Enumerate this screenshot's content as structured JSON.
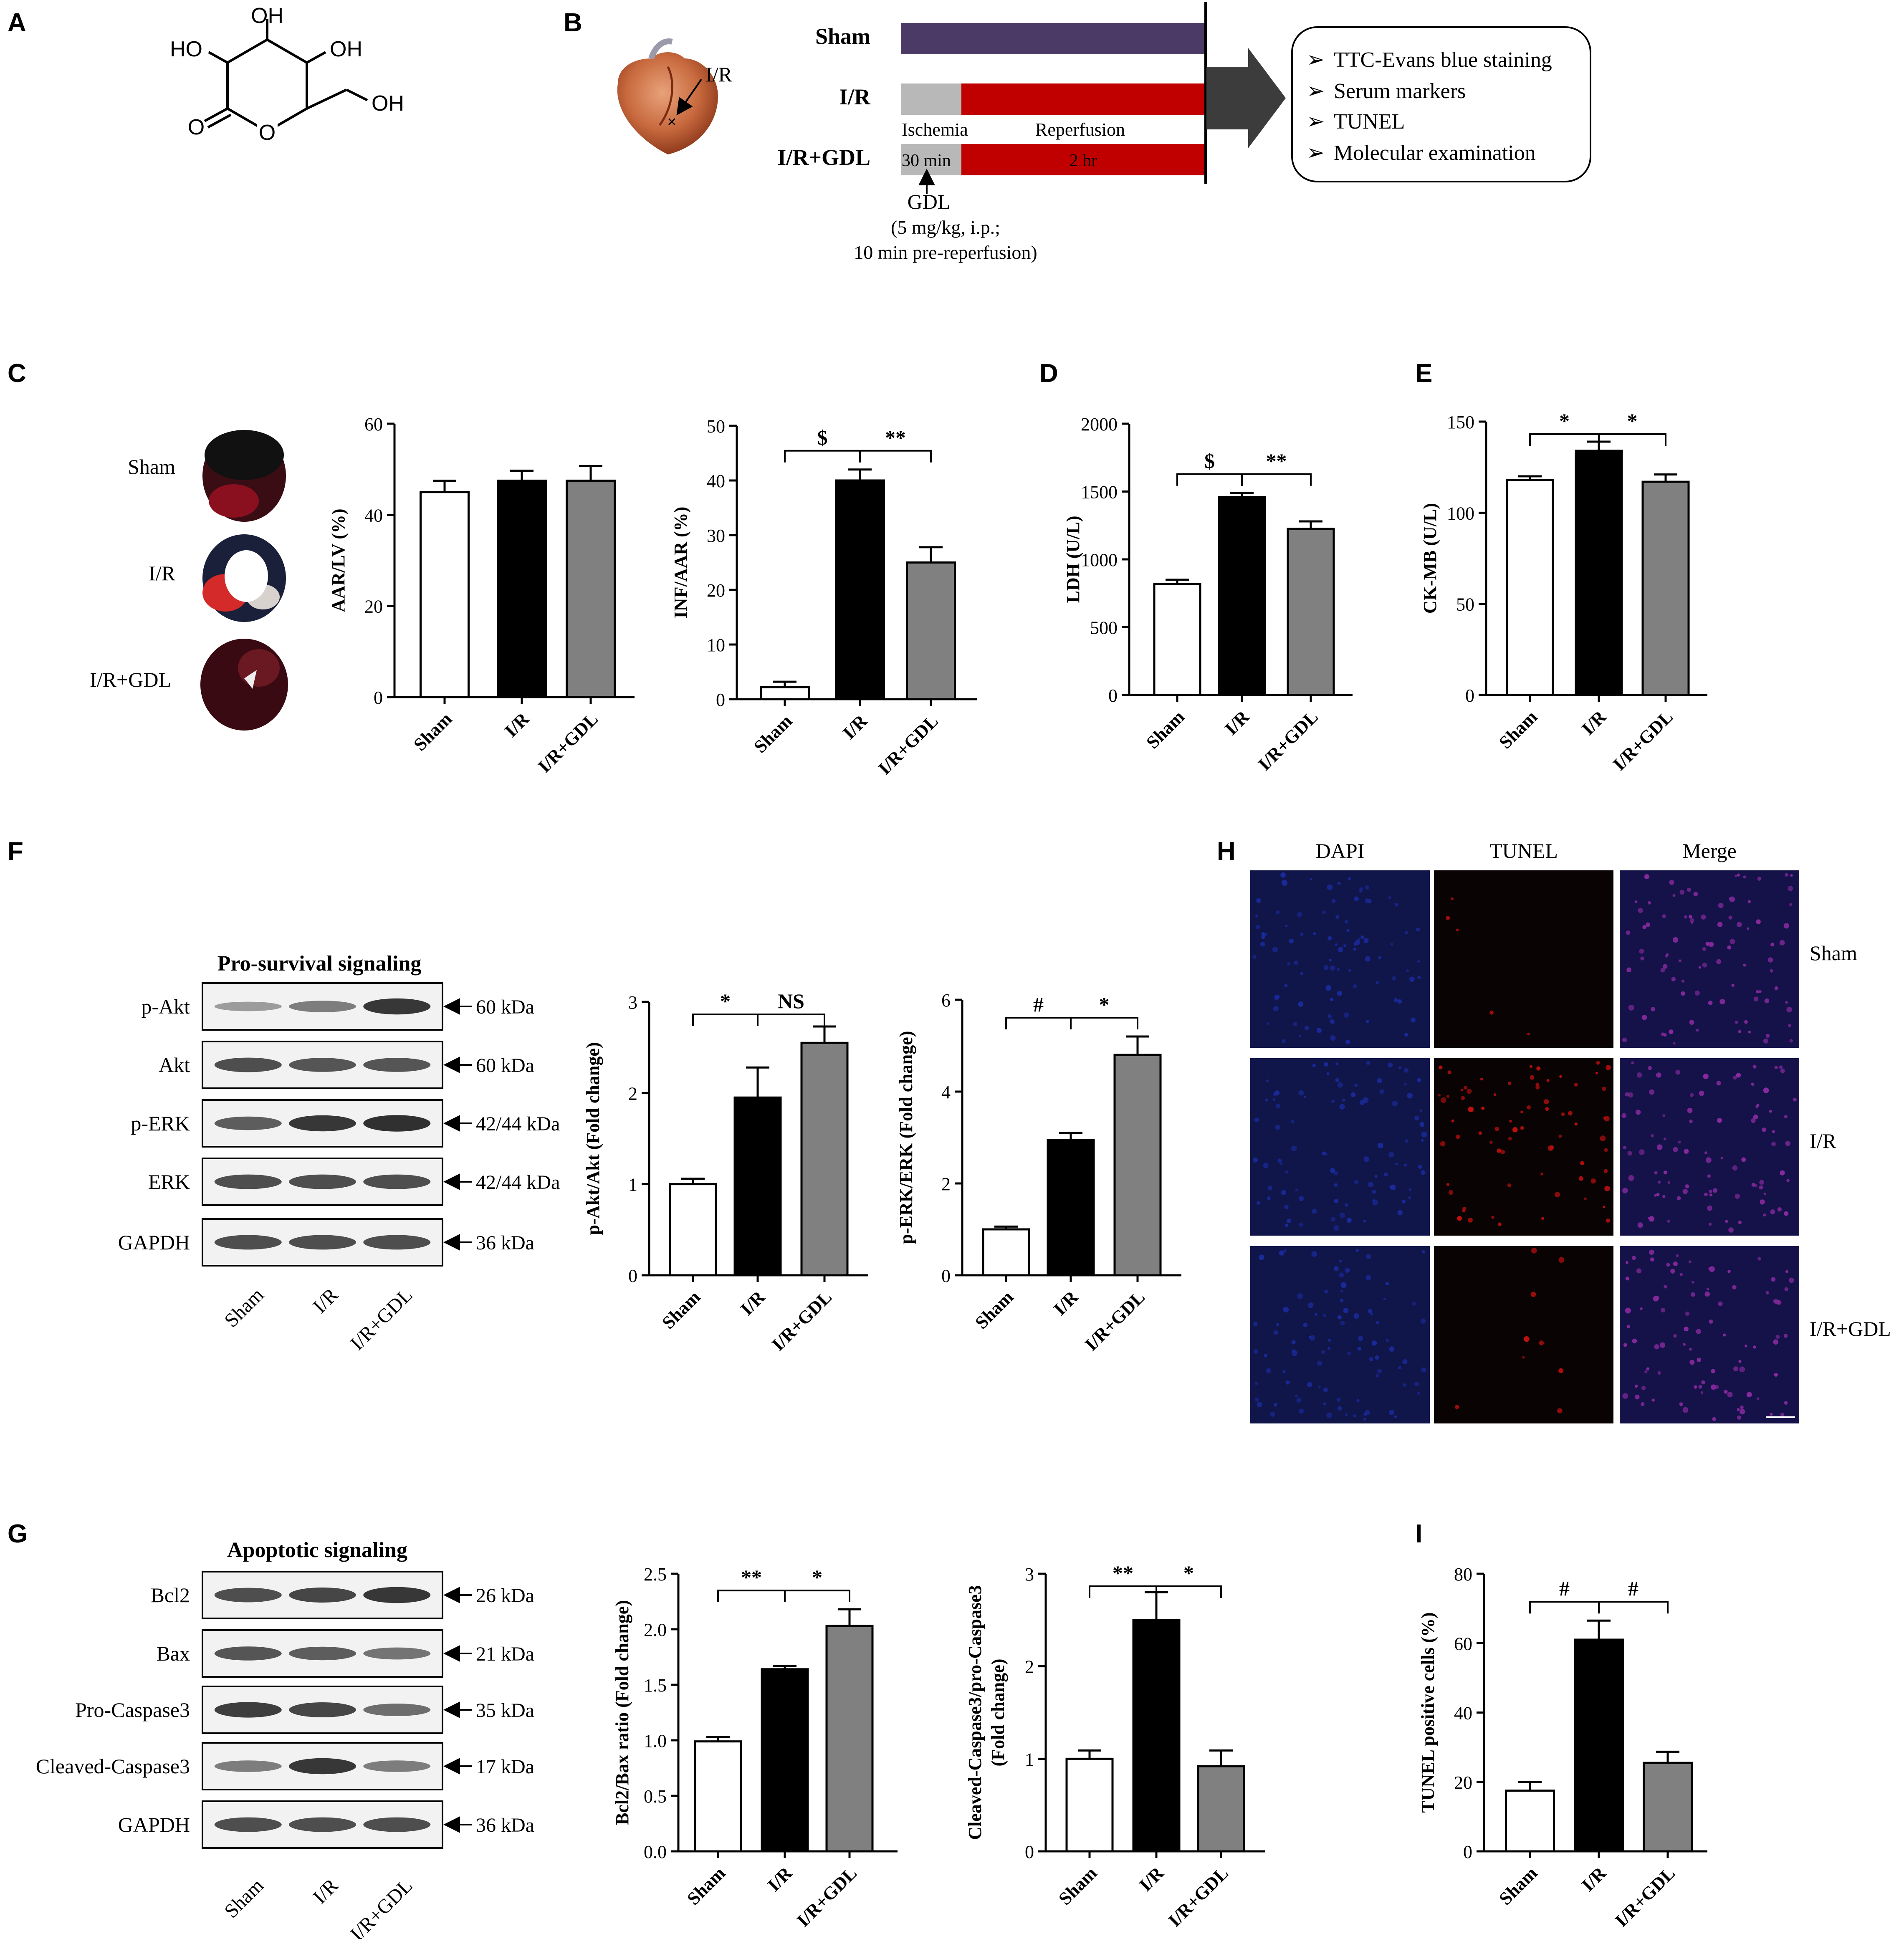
{
  "panels": {
    "A": "A",
    "B": "B",
    "C": "C",
    "D": "D",
    "E": "E",
    "F": "F",
    "G": "G",
    "H": "H",
    "I": "I"
  },
  "colors": {
    "sham_bar": "#ffffff",
    "ir_bar": "#000000",
    "gdl_bar": "#808080",
    "sham_timeline": "#4b3a66",
    "ischemia": "#b8b8b8",
    "reperfusion": "#c00000",
    "dapi": "#1a2a9a",
    "tunel": "#c01010",
    "merge": "#8a2aa0"
  },
  "structure": {
    "atoms": {
      "oh_top": "OH",
      "ho_left": "HO",
      "oh_right": "OH",
      "o_carbonyl": "O",
      "o_ring": "O",
      "oh_ch2": "OH"
    }
  },
  "protocol": {
    "heart_label": "I/R",
    "groups": [
      "Sham",
      "I/R",
      "I/R+GDL"
    ],
    "ischemia_label": "Ischemia",
    "reperfusion_label": "Reperfusion",
    "ischemia_time": "30  min",
    "reperfusion_time": "2 hr",
    "gdl_label": "GDL",
    "gdl_dose": "(5 mg/kg, i.p.;",
    "gdl_timing": "10 min pre-reperfusion)",
    "outcomes": [
      "TTC-Evans  blue  staining",
      "Serum  markers",
      "TUNEL",
      "Molecular  examination"
    ],
    "bullet": "➢"
  },
  "staining": {
    "labels": [
      "Sham",
      "I/R",
      "I/R+GDL"
    ]
  },
  "blot_f": {
    "title": "Pro-survival  signaling",
    "rows": [
      {
        "name": "p-Akt",
        "size": "60 kDa"
      },
      {
        "name": "Akt",
        "size": "60 kDa"
      },
      {
        "name": "p-ERK",
        "size": "42/44 kDa"
      },
      {
        "name": "ERK",
        "size": "42/44 kDa"
      },
      {
        "name": "GAPDH",
        "size": "36 kDa"
      }
    ],
    "lanes": [
      "Sham",
      "I/R",
      "I/R+GDL"
    ]
  },
  "blot_g": {
    "title": "Apoptotic  signaling",
    "rows": [
      {
        "name": "Bcl2",
        "size": "26 kDa"
      },
      {
        "name": "Bax",
        "size": "21 kDa"
      },
      {
        "name": "Pro-Caspase3",
        "size": "35 kDa"
      },
      {
        "name": "Cleaved-Caspase3",
        "size": "17 kDa"
      },
      {
        "name": "GAPDH",
        "size": "36 kDa"
      }
    ],
    "lanes": [
      "Sham",
      "I/R",
      "I/R+GDL"
    ]
  },
  "tunel_images": {
    "columns": [
      "DAPI",
      "TUNEL",
      "Merge"
    ],
    "rows": [
      "Sham",
      "I/R",
      "I/R+GDL"
    ]
  },
  "chart_data": [
    {
      "id": "aar",
      "type": "bar",
      "categories": [
        "Sham",
        "I/R",
        "I/R+GDL"
      ],
      "values": [
        45,
        47.5,
        47.5
      ],
      "errors": [
        2.5,
        2.2,
        3.2
      ],
      "ylabel": "AAR/LV (%)",
      "ylim": [
        0,
        60
      ],
      "yticks": [
        0,
        20,
        40,
        60
      ],
      "annotations": []
    },
    {
      "id": "inf",
      "type": "bar",
      "categories": [
        "Sham",
        "I/R",
        "I/R+GDL"
      ],
      "values": [
        2.2,
        40,
        25
      ],
      "errors": [
        1.0,
        2.0,
        2.8
      ],
      "ylabel": "INF/AAR (%)",
      "ylim": [
        0,
        50
      ],
      "yticks": [
        0,
        10,
        20,
        30,
        40,
        50
      ],
      "annotations": [
        {
          "left": "$",
          "right": "**"
        }
      ]
    },
    {
      "id": "ldh",
      "type": "bar",
      "categories": [
        "Sham",
        "I/R",
        "I/R+GDL"
      ],
      "values": [
        820,
        1460,
        1225
      ],
      "errors": [
        30,
        30,
        55
      ],
      "ylabel": "LDH (U/L)",
      "ylim": [
        0,
        2000
      ],
      "yticks": [
        0,
        500,
        1000,
        1500,
        2000
      ],
      "annotations": [
        {
          "left": "$",
          "right": "**"
        }
      ]
    },
    {
      "id": "ckmb",
      "type": "bar",
      "categories": [
        "Sham",
        "I/R",
        "I/R+GDL"
      ],
      "values": [
        118,
        134,
        117
      ],
      "errors": [
        2,
        5,
        4
      ],
      "ylabel": "CK-MB (U/L)",
      "ylim": [
        0,
        150
      ],
      "yticks": [
        0,
        50,
        100,
        150
      ],
      "annotations": [
        {
          "left": "*",
          "right": "*"
        }
      ]
    },
    {
      "id": "pakt",
      "type": "bar",
      "categories": [
        "Sham",
        "I/R",
        "I/R+GDL"
      ],
      "values": [
        1.0,
        1.95,
        2.55
      ],
      "errors": [
        0.06,
        0.33,
        0.18
      ],
      "ylabel": "p-Akt/Akt (Fold change)",
      "ylim": [
        0,
        3
      ],
      "yticks": [
        0,
        1,
        2,
        3
      ],
      "annotations": [
        {
          "left": "*",
          "right": "NS"
        }
      ]
    },
    {
      "id": "perk",
      "type": "bar",
      "categories": [
        "Sham",
        "I/R",
        "I/R+GDL"
      ],
      "values": [
        1.0,
        2.95,
        4.8
      ],
      "errors": [
        0.06,
        0.15,
        0.4
      ],
      "ylabel": "p-ERK/ERK (Fold change)",
      "ylim": [
        0,
        6
      ],
      "yticks": [
        0,
        2,
        4,
        6
      ],
      "annotations": [
        {
          "left": "#",
          "right": "*"
        }
      ]
    },
    {
      "id": "bcl2bax",
      "type": "bar",
      "categories": [
        "Sham",
        "I/R",
        "I/R+GDL"
      ],
      "values": [
        0.99,
        1.64,
        2.03
      ],
      "errors": [
        0.04,
        0.03,
        0.15
      ],
      "ylabel": "Bcl2/Bax ratio (Fold change)",
      "ylim": [
        0,
        2.5
      ],
      "yticks": [
        "0.0",
        "0.5",
        "1.0",
        "1.5",
        "2.0",
        "2.5"
      ],
      "annotations": [
        {
          "left": "**",
          "right": "*"
        }
      ]
    },
    {
      "id": "casp",
      "type": "bar",
      "categories": [
        "Sham",
        "I/R",
        "I/R+GDL"
      ],
      "values": [
        1.0,
        2.5,
        0.92
      ],
      "errors": [
        0.09,
        0.3,
        0.17
      ],
      "ylabel": "Cleaved-Caspase3/pro-Caspase3",
      "ylabel2": "(Fold change)",
      "ylim": [
        0,
        3
      ],
      "yticks": [
        0,
        1,
        2,
        3
      ],
      "annotations": [
        {
          "left": "**",
          "right": "*"
        }
      ]
    },
    {
      "id": "tunelpos",
      "type": "bar",
      "categories": [
        "Sham",
        "I/R",
        "I/R+GDL"
      ],
      "values": [
        17.5,
        61,
        25.5
      ],
      "errors": [
        2.5,
        5.5,
        3.2
      ],
      "ylabel": "TUNEL positive cells (%)",
      "ylim": [
        0,
        80
      ],
      "yticks": [
        0,
        20,
        40,
        60,
        80
      ],
      "annotations": [
        {
          "left": "#",
          "right": "#"
        }
      ]
    }
  ]
}
